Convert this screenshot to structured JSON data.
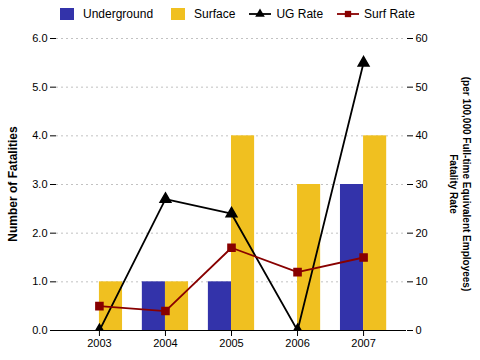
{
  "chart_data": {
    "type": "bar",
    "categories": [
      "2003",
      "2004",
      "2005",
      "2006",
      "2007"
    ],
    "series": [
      {
        "name": "Underground",
        "color": "#3333aa",
        "values": [
          0,
          1,
          1,
          0,
          3
        ]
      },
      {
        "name": "Surface",
        "color": "#f0c020",
        "values": [
          1,
          1,
          4,
          3,
          4
        ]
      },
      {
        "name": "UG Rate",
        "type": "line",
        "axis": "y2",
        "marker": "triangle",
        "color": "#000000",
        "values": [
          0,
          27,
          24,
          0,
          55
        ]
      },
      {
        "name": "Surf Rate",
        "type": "line",
        "axis": "y2",
        "marker": "square",
        "color": "#880000",
        "values": [
          5,
          4,
          17,
          12,
          15
        ]
      }
    ],
    "ylabel": "Number of Fatalities",
    "y2label": "Fatality Rate\n(per 100,000 Full-time Equivalent Employees)",
    "ylim": [
      0,
      6
    ],
    "yticks": [
      0,
      1,
      2,
      3,
      4,
      5,
      6
    ],
    "y2lim": [
      0,
      60
    ],
    "y2ticks": [
      0,
      10,
      20,
      30,
      40,
      50,
      60
    ],
    "grid": true,
    "legend": "upper left"
  }
}
